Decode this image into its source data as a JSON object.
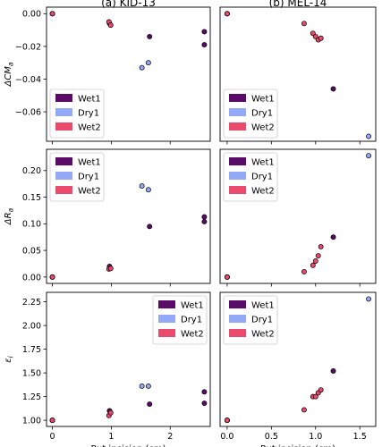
{
  "chart_data": [
    {
      "type": "scatter",
      "column_title": "(a) KID-13",
      "xlabel": "",
      "ylabel": "ΔCM",
      "ylabel_sub": "a",
      "xlim": [
        -0.1,
        2.68
      ],
      "ylim": [
        -0.078,
        0.004
      ],
      "xticks": [
        0,
        1,
        2
      ],
      "yticks": [
        0.0,
        -0.02,
        -0.04,
        -0.06
      ],
      "ytick_labels": [
        "0.00",
        "−0.02",
        "−0.04",
        "−0.06"
      ],
      "legend": "lower-left",
      "series": [
        {
          "name": "Wet1",
          "color": "#5b0a6a",
          "points": [
            [
              0,
              0
            ],
            [
              0.97,
              -0.006
            ],
            [
              1.65,
              -0.014
            ],
            [
              2.58,
              -0.011
            ],
            [
              2.58,
              -0.019
            ]
          ]
        },
        {
          "name": "Dry1",
          "color": "#93a9f7",
          "points": [
            [
              0,
              0
            ],
            [
              1.52,
              -0.033
            ],
            [
              1.63,
              -0.03
            ]
          ]
        },
        {
          "name": "Wet2",
          "color": "#ea4a6c",
          "points": [
            [
              0,
              0
            ],
            [
              0.96,
              -0.005
            ],
            [
              0.99,
              -0.007
            ]
          ]
        }
      ]
    },
    {
      "type": "scatter",
      "column_title": "(b) MEL-14",
      "xlabel": "",
      "ylabel": "",
      "xlim": [
        -0.08,
        1.68
      ],
      "ylim": [
        -0.078,
        0.004
      ],
      "xticks": [
        0.0,
        0.5,
        1.0,
        1.5
      ],
      "yticks": [],
      "legend": "lower-left",
      "series": [
        {
          "name": "Wet1",
          "color": "#5b0a6a",
          "points": [
            [
              0,
              0
            ],
            [
              1.2,
              -0.046
            ]
          ]
        },
        {
          "name": "Dry1",
          "color": "#93a9f7",
          "points": [
            [
              0,
              0
            ],
            [
              1.6,
              -0.075
            ]
          ]
        },
        {
          "name": "Wet2",
          "color": "#ea4a6c",
          "points": [
            [
              0,
              0
            ],
            [
              0.87,
              -0.006
            ],
            [
              0.97,
              -0.012
            ],
            [
              1.0,
              -0.014
            ],
            [
              1.03,
              -0.016
            ],
            [
              1.06,
              -0.015
            ]
          ]
        }
      ]
    },
    {
      "type": "scatter",
      "xlabel": "",
      "ylabel": "ΔR",
      "ylabel_sub": "a",
      "xlim": [
        -0.1,
        2.68
      ],
      "ylim": [
        -0.012,
        0.24
      ],
      "xticks": [
        0,
        1,
        2
      ],
      "yticks": [
        0.0,
        0.05,
        0.1,
        0.15,
        0.2
      ],
      "ytick_labels": [
        "0.00",
        "0.05",
        "0.10",
        "0.15",
        "0.20"
      ],
      "legend": "top-left",
      "series": [
        {
          "name": "Wet1",
          "color": "#5b0a6a",
          "points": [
            [
              0,
              0
            ],
            [
              0.97,
              0.02
            ],
            [
              1.65,
              0.095
            ],
            [
              2.58,
              0.113
            ],
            [
              2.58,
              0.104
            ]
          ]
        },
        {
          "name": "Dry1",
          "color": "#93a9f7",
          "points": [
            [
              0,
              0
            ],
            [
              1.52,
              0.171
            ],
            [
              1.63,
              0.164
            ]
          ]
        },
        {
          "name": "Wet2",
          "color": "#ea4a6c",
          "points": [
            [
              0,
              0
            ],
            [
              0.96,
              0.015
            ],
            [
              0.99,
              0.016
            ]
          ]
        }
      ]
    },
    {
      "type": "scatter",
      "xlabel": "",
      "ylabel": "",
      "xlim": [
        -0.08,
        1.68
      ],
      "ylim": [
        -0.012,
        0.24
      ],
      "xticks": [
        0.0,
        0.5,
        1.0,
        1.5
      ],
      "yticks": [],
      "legend": "top-left",
      "series": [
        {
          "name": "Wet1",
          "color": "#5b0a6a",
          "points": [
            [
              0,
              0
            ],
            [
              1.2,
              0.075
            ]
          ]
        },
        {
          "name": "Dry1",
          "color": "#93a9f7",
          "points": [
            [
              0,
              0
            ],
            [
              1.6,
              0.228
            ]
          ]
        },
        {
          "name": "Wet2",
          "color": "#ea4a6c",
          "points": [
            [
              0,
              0
            ],
            [
              0.87,
              0.01
            ],
            [
              0.97,
              0.022
            ],
            [
              1.0,
              0.03
            ],
            [
              1.03,
              0.04
            ],
            [
              1.06,
              0.057
            ]
          ]
        }
      ]
    },
    {
      "type": "scatter",
      "xlabel": "Rut incision (cm)",
      "ylabel": "ε",
      "ylabel_sub": "i",
      "xlim": [
        -0.1,
        2.68
      ],
      "ylim": [
        0.935,
        2.35
      ],
      "xticks": [
        0,
        1,
        2
      ],
      "yticks": [
        1.0,
        1.25,
        1.5,
        1.75,
        2.0,
        2.25
      ],
      "ytick_labels": [
        "1.00",
        "1.25",
        "1.50",
        "1.75",
        "2.00",
        "2.25"
      ],
      "legend": "top-right",
      "series": [
        {
          "name": "Wet1",
          "color": "#5b0a6a",
          "points": [
            [
              0,
              1.0
            ],
            [
              0.97,
              1.1
            ],
            [
              1.65,
              1.17
            ],
            [
              2.58,
              1.3
            ],
            [
              2.58,
              1.18
            ]
          ]
        },
        {
          "name": "Dry1",
          "color": "#93a9f7",
          "points": [
            [
              0,
              1.0
            ],
            [
              1.52,
              1.36
            ],
            [
              1.63,
              1.36
            ]
          ]
        },
        {
          "name": "Wet2",
          "color": "#ea4a6c",
          "points": [
            [
              0,
              1.0
            ],
            [
              0.96,
              1.05
            ],
            [
              0.99,
              1.08
            ]
          ]
        }
      ]
    },
    {
      "type": "scatter",
      "xlabel": "Rut incision (cm)",
      "ylabel": "",
      "xlim": [
        -0.08,
        1.68
      ],
      "ylim": [
        0.935,
        2.35
      ],
      "xticks": [
        0.0,
        0.5,
        1.0,
        1.5
      ],
      "yticks": [],
      "legend": "top-left",
      "series": [
        {
          "name": "Wet1",
          "color": "#5b0a6a",
          "points": [
            [
              0,
              1.0
            ],
            [
              1.2,
              1.52
            ]
          ]
        },
        {
          "name": "Dry1",
          "color": "#93a9f7",
          "points": [
            [
              0,
              1.0
            ],
            [
              1.6,
              2.28
            ]
          ]
        },
        {
          "name": "Wet2",
          "color": "#ea4a6c",
          "points": [
            [
              0,
              1.0
            ],
            [
              0.87,
              1.11
            ],
            [
              0.97,
              1.25
            ],
            [
              1.0,
              1.25
            ],
            [
              1.03,
              1.29
            ],
            [
              1.06,
              1.32
            ]
          ]
        }
      ]
    }
  ]
}
